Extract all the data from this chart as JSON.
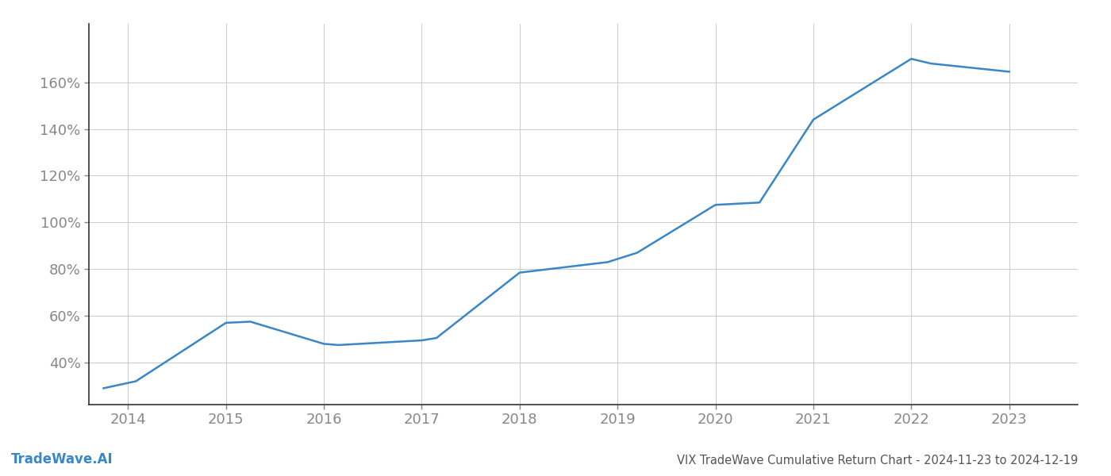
{
  "x_years": [
    2013.75,
    2014.08,
    2015.0,
    2015.25,
    2016.0,
    2016.15,
    2017.0,
    2017.15,
    2018.0,
    2018.9,
    2019.2,
    2020.0,
    2020.45,
    2021.0,
    2022.0,
    2022.2,
    2023.0
  ],
  "y_values": [
    29.0,
    32.0,
    57.0,
    57.5,
    48.0,
    47.5,
    49.5,
    50.5,
    78.5,
    83.0,
    87.0,
    107.5,
    108.5,
    144.0,
    170.0,
    168.0,
    164.5
  ],
  "line_color": "#3a87c8",
  "line_width": 1.8,
  "title": "VIX TradeWave Cumulative Return Chart - 2024-11-23 to 2024-12-19",
  "watermark": "TradeWave.AI",
  "bg_color": "#ffffff",
  "grid_color": "#cccccc",
  "axis_color": "#333333",
  "tick_label_color": "#888888",
  "title_color": "#555555",
  "watermark_color": "#3a87c8",
  "ytick_labels": [
    "40%",
    "60%",
    "80%",
    "100%",
    "120%",
    "140%",
    "160%"
  ],
  "ytick_values": [
    40,
    60,
    80,
    100,
    120,
    140,
    160
  ],
  "xtick_labels": [
    "2014",
    "2015",
    "2016",
    "2017",
    "2018",
    "2019",
    "2020",
    "2021",
    "2022",
    "2023"
  ],
  "xtick_values": [
    2014,
    2015,
    2016,
    2017,
    2018,
    2019,
    2020,
    2021,
    2022,
    2023
  ],
  "xlim": [
    2013.6,
    2023.7
  ],
  "ylim": [
    22,
    185
  ]
}
